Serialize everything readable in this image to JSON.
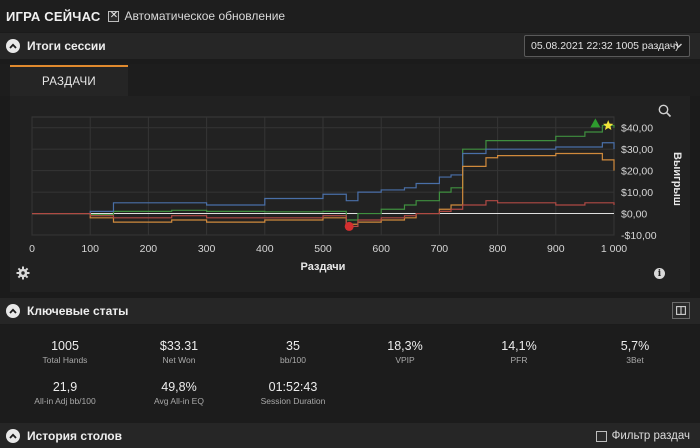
{
  "header": {
    "title": "ИГРА СЕЙЧАС",
    "auto_update_label": "Автоматическое обновление",
    "auto_update_checked": "✕"
  },
  "session": {
    "title": "Итоги сессии",
    "selected": "05.08.2021 22:32 1005 раздач)"
  },
  "tabs": [
    {
      "label": "РАЗДАЧИ"
    }
  ],
  "chart_data": {
    "type": "line",
    "xlabel": "Раздачи",
    "ylabel": "Выигрыш",
    "xlim": [
      0,
      1000
    ],
    "ylim": [
      -10,
      45
    ],
    "x_ticks": [
      "0",
      "100",
      "200",
      "300",
      "400",
      "500",
      "600",
      "700",
      "800",
      "900",
      "1 000"
    ],
    "y_ticks": [
      {
        "value": -10,
        "label": "-$10,00"
      },
      {
        "value": 0,
        "label": "$0,00"
      },
      {
        "value": 10,
        "label": "$10,00"
      },
      {
        "value": 20,
        "label": "$20,00"
      },
      {
        "value": 30,
        "label": "$30,00"
      },
      {
        "value": 40,
        "label": "$40,00"
      }
    ],
    "grid": true,
    "series": [
      {
        "color": "#e0e0e0",
        "width": 1,
        "x": [
          0,
          1000
        ],
        "y": [
          0,
          0
        ]
      },
      {
        "color": "#3f8f3f",
        "width": 1.2,
        "x": [
          0,
          100,
          140,
          240,
          300,
          400,
          500,
          540,
          560,
          600,
          640,
          660,
          700,
          720,
          740,
          780,
          800,
          900,
          950,
          980,
          1000
        ],
        "y": [
          0,
          -0.5,
          1,
          1.5,
          1,
          0.8,
          1,
          -3,
          0,
          2,
          4,
          6,
          10,
          12,
          30,
          34,
          34,
          36,
          38,
          41,
          40
        ]
      },
      {
        "color": "#4a6fa8",
        "width": 1.2,
        "x": [
          0,
          100,
          140,
          240,
          300,
          400,
          500,
          540,
          560,
          600,
          640,
          660,
          700,
          720,
          740,
          780,
          800,
          900,
          950,
          980,
          1000
        ],
        "y": [
          0,
          1,
          5,
          5,
          4,
          7,
          9,
          6,
          10,
          11,
          12,
          14,
          17,
          18,
          28,
          30,
          30,
          31,
          31,
          33,
          30
        ]
      },
      {
        "color": "#d08a3c",
        "width": 1.2,
        "x": [
          0,
          100,
          140,
          240,
          300,
          400,
          500,
          540,
          560,
          600,
          640,
          660,
          700,
          720,
          740,
          780,
          800,
          900,
          950,
          980,
          1000
        ],
        "y": [
          0,
          -2,
          -4,
          -3,
          -4,
          -3,
          -2,
          -5,
          -4,
          -3,
          -2,
          0,
          2,
          4,
          22,
          26,
          27,
          28,
          28,
          25,
          20
        ]
      },
      {
        "color": "#b04a44",
        "width": 1.2,
        "x": [
          0,
          100,
          140,
          240,
          300,
          400,
          500,
          540,
          560,
          600,
          640,
          660,
          700,
          720,
          740,
          780,
          800,
          900,
          950,
          980,
          1000
        ],
        "y": [
          0,
          -1,
          -2,
          -1,
          -2,
          -2,
          -1,
          -6,
          -3,
          -2,
          -1,
          0,
          1,
          2,
          4,
          6,
          5,
          4,
          5,
          5,
          4
        ]
      }
    ],
    "markers": [
      {
        "shape": "red-blob-icon",
        "color": "#d32f2f",
        "x": 545,
        "y": -6
      },
      {
        "shape": "green-triangle-icon",
        "color": "#2e9b2e",
        "x": 968,
        "y": 42
      },
      {
        "shape": "yellow-star-icon",
        "color": "#f2e43a",
        "x": 990,
        "y": 41
      }
    ]
  },
  "key_stats": {
    "title": "Ключевые статы",
    "items": [
      {
        "value": "1005",
        "label": "Total Hands"
      },
      {
        "value": "$33.31",
        "label": "Net Won"
      },
      {
        "value": "35",
        "label": "bb/100"
      },
      {
        "value": "18,3%",
        "label": "VPIP"
      },
      {
        "value": "14,1%",
        "label": "PFR"
      },
      {
        "value": "5,7%",
        "label": "3Bet"
      },
      {
        "value": "21,9",
        "label": "All-in Adj bb/100"
      },
      {
        "value": "49,8%",
        "label": "Avg All-in EQ"
      },
      {
        "value": "01:52:43",
        "label": "Session Duration"
      }
    ]
  },
  "tables_history": {
    "title": "История столов",
    "filter_label": "Фильтр раздач"
  }
}
